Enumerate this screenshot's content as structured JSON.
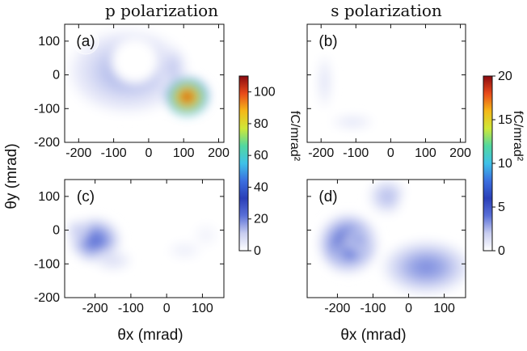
{
  "chart_data": [
    {
      "type": "heatmap",
      "panel": "(a)",
      "column_title": "p polarization",
      "xlabel": "",
      "ylabel": "θy (mrad)",
      "xlim": [
        -240,
        215
      ],
      "ylim": [
        -200,
        150
      ],
      "xticks": [
        "-200",
        "-100",
        "0",
        "100",
        "200"
      ],
      "yticks": [
        "100",
        "0",
        "-100",
        "-200"
      ],
      "colorbar": "p",
      "blobs": [
        {
          "x": -60,
          "y": 10,
          "sx": 190,
          "sy": 140,
          "v": 15
        },
        {
          "x": 110,
          "y": -60,
          "sx": 70,
          "sy": 60,
          "v": 50
        },
        {
          "x": 110,
          "y": -65,
          "sx": 28,
          "sy": 26,
          "v": 40
        },
        {
          "x": 70,
          "y": 20,
          "sx": 40,
          "sy": 70,
          "v": 12
        }
      ],
      "holes": [
        {
          "x": -40,
          "y": 40,
          "r": 65
        }
      ],
      "peak": {
        "x": 110,
        "y": -65,
        "value": 105
      }
    },
    {
      "type": "heatmap",
      "panel": "(b)",
      "column_title": "s polarization",
      "xlabel": "",
      "ylabel": "",
      "xlim": [
        -240,
        215
      ],
      "ylim": [
        -200,
        150
      ],
      "xticks": [
        "-200",
        "-100",
        "0",
        "100",
        "200"
      ],
      "yticks": [],
      "colorbar": "s",
      "blobs": [
        {
          "x": -190,
          "y": -20,
          "sx": 25,
          "sy": 90,
          "v": 1.2
        },
        {
          "x": -110,
          "y": -140,
          "sx": 70,
          "sy": 25,
          "v": 1.1
        }
      ],
      "holes": []
    },
    {
      "type": "heatmap",
      "panel": "(c)",
      "column_title": "",
      "xlabel": "θx (mrad)",
      "ylabel": "",
      "xlim": [
        -285,
        160
      ],
      "ylim": [
        -200,
        150
      ],
      "xticks": [
        "-200",
        "-100",
        "0",
        "100"
      ],
      "yticks": [
        "100",
        "0",
        "-100",
        "-200"
      ],
      "colorbar": "p",
      "blobs": [
        {
          "x": -200,
          "y": -30,
          "sx": 80,
          "sy": 75,
          "v": 24
        },
        {
          "x": -250,
          "y": 0,
          "sx": 35,
          "sy": 35,
          "v": 12
        },
        {
          "x": -150,
          "y": -90,
          "sx": 60,
          "sy": 35,
          "v": 8
        },
        {
          "x": 50,
          "y": -60,
          "sx": 55,
          "sy": 30,
          "v": 4
        },
        {
          "x": 110,
          "y": -15,
          "sx": 40,
          "sy": 40,
          "v": 3
        }
      ],
      "holes": [
        {
          "x": -10,
          "y": 20,
          "r": 45
        }
      ]
    },
    {
      "type": "heatmap",
      "panel": "(d)",
      "column_title": "",
      "xlabel": "θx (mrad)",
      "ylabel": "",
      "xlim": [
        -285,
        160
      ],
      "ylim": [
        -200,
        150
      ],
      "xticks": [
        "-200",
        "-100",
        "0",
        "100"
      ],
      "yticks": [],
      "colorbar": "s",
      "blobs": [
        {
          "x": -170,
          "y": -40,
          "sx": 95,
          "sy": 100,
          "v": 5
        },
        {
          "x": -165,
          "y": -70,
          "sx": 45,
          "sy": 40,
          "v": 4
        },
        {
          "x": -140,
          "y": -30,
          "sx": 45,
          "sy": 35,
          "v": 3
        },
        {
          "x": 50,
          "y": -110,
          "sx": 140,
          "sy": 90,
          "v": 3.5
        },
        {
          "x": -60,
          "y": 100,
          "sx": 60,
          "sy": 60,
          "v": 2.5
        }
      ],
      "holes": [
        {
          "x": 40,
          "y": 70,
          "r": 65
        }
      ]
    }
  ],
  "colorbars": {
    "p": {
      "label": "fC/mrad²",
      "min": 0,
      "max": 110,
      "ticks": [
        "0",
        "20",
        "40",
        "60",
        "80",
        "100"
      ],
      "tick_values": [
        0,
        20,
        40,
        60,
        80,
        100
      ]
    },
    "s": {
      "label": "fC/mrad²",
      "min": 0,
      "max": 20,
      "ticks": [
        "0",
        "5",
        "10",
        "15",
        "20"
      ],
      "tick_values": [
        0,
        5,
        10,
        15,
        20
      ]
    }
  },
  "colormap": [
    "#ffffff",
    "#c8cdf0",
    "#5a70d8",
    "#2a3fb8",
    "#3b6fe0",
    "#3fc1e8",
    "#52d8a0",
    "#cfe838",
    "#f5b818",
    "#e84a1a",
    "#8a0a10"
  ],
  "labels": {
    "title_p": "p polarization",
    "title_s": "s polarization",
    "y_axis": "θy (mrad)",
    "x_axis_left": "θx (mrad)",
    "x_axis_right": "θx (mrad)",
    "tag_a": "(a)",
    "tag_b": "(b)",
    "tag_c": "(c)",
    "tag_d": "(d)",
    "cb_p": "fC/mrad²",
    "cb_s": "fC/mrad²"
  }
}
